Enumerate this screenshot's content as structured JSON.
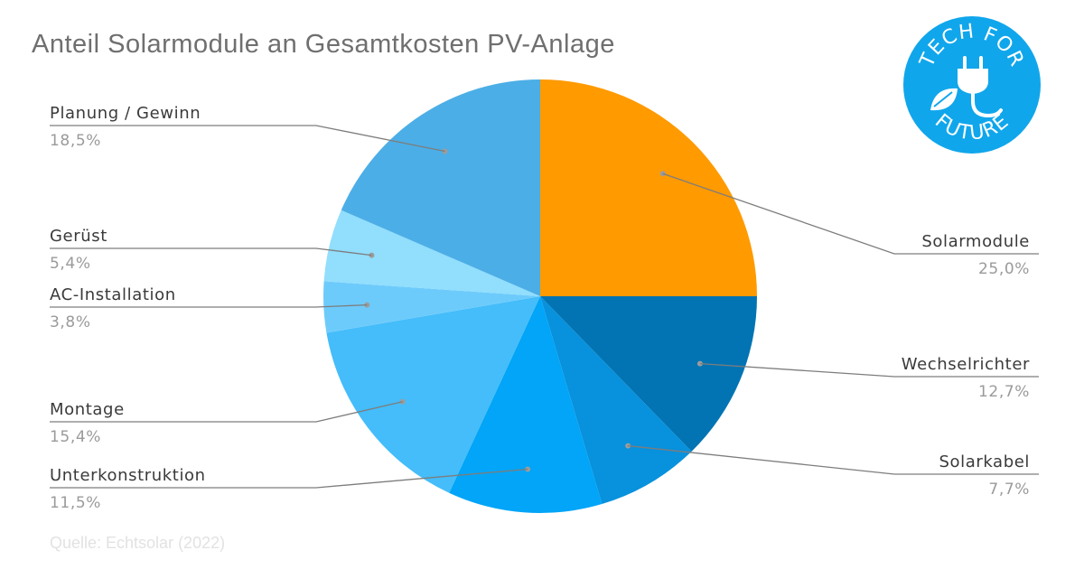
{
  "chart_data": {
    "type": "pie",
    "title": "Anteil Solarmodule an Gesamtkosten PV-Anlage",
    "source": "Quelle: Echtsolar (2022)",
    "slices": [
      {
        "label": "Solarmodule",
        "value_label": "25,0%",
        "value": 25.0,
        "color": "#ff9a00"
      },
      {
        "label": "Wechselrichter",
        "value_label": "12,7%",
        "value": 12.7,
        "color": "#0274b3"
      },
      {
        "label": "Solarkabel",
        "value_label": "7,7%",
        "value": 7.7,
        "color": "#0891dc"
      },
      {
        "label": "Unterkonstruktion",
        "value_label": "11,5%",
        "value": 11.5,
        "color": "#02a5f7"
      },
      {
        "label": "Montage",
        "value_label": "15,4%",
        "value": 15.4,
        "color": "#44bdfa"
      },
      {
        "label": "AC-Installation",
        "value_label": "3,8%",
        "value": 3.8,
        "color": "#6dcbfb"
      },
      {
        "label": "Gerüst",
        "value_label": "5,4%",
        "value": 5.4,
        "color": "#91defd"
      },
      {
        "label": "Planung / Gewinn",
        "value_label": "18,5%",
        "value": 18.5,
        "color": "#4caee6"
      }
    ]
  },
  "logo": {
    "top_text": "TECH FOR",
    "bottom_text": "FUTURE",
    "color": "#10a6ec"
  }
}
